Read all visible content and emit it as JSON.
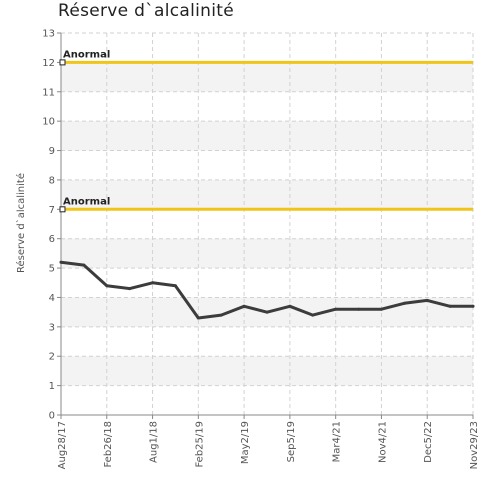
{
  "chart_data": {
    "type": "line",
    "title": "Réserve d`alcalinité",
    "xlabel": "",
    "ylabel": "Réserve d`alcalinité",
    "ylim": [
      0,
      13
    ],
    "yticks": [
      0,
      1,
      2,
      3,
      4,
      5,
      6,
      7,
      8,
      9,
      10,
      11,
      12,
      13
    ],
    "grid": true,
    "x_tick_labels": [
      "Aug28/17",
      "Feb26/18",
      "Aug1/18",
      "Feb25/19",
      "May2/19",
      "Sep5/19",
      "Mar4/21",
      "Nov4/21",
      "Dec5/22",
      "Nov29/23"
    ],
    "series": [
      {
        "values": [
          5.2,
          5.1,
          4.4,
          4.3,
          4.5,
          4.4,
          3.3,
          3.4,
          3.7,
          3.5,
          3.7,
          3.4,
          3.6,
          3.6,
          3.6,
          3.8,
          3.9,
          3.7,
          3.7
        ],
        "color": "#3c3c3c"
      }
    ],
    "reference_lines": [
      {
        "label": "Anormal",
        "value": 12,
        "color": "#f0c419"
      },
      {
        "label": "Anormal",
        "value": 7,
        "color": "#f0c419"
      }
    ]
  }
}
